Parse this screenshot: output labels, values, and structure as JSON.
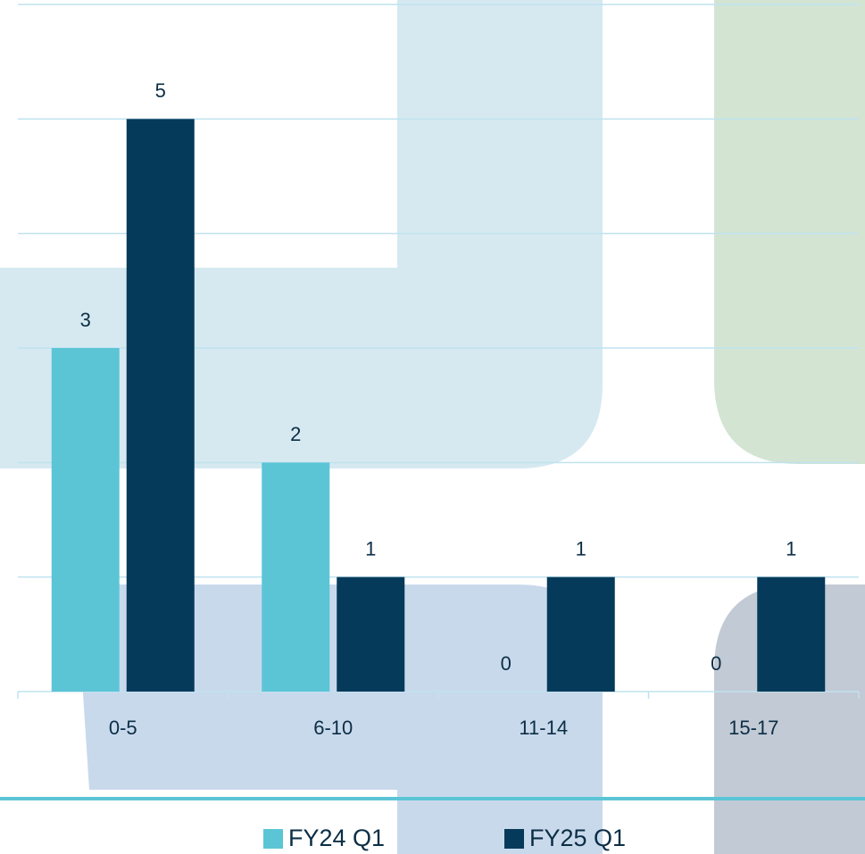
{
  "chart_data": {
    "type": "bar",
    "categories": [
      "0-5",
      "6-10",
      "11-14",
      "15-17"
    ],
    "series": [
      {
        "name": "FY24 Q1",
        "color": "#5bc5d6",
        "values": [
          3,
          2,
          0,
          0
        ]
      },
      {
        "name": "FY25 Q1",
        "color": "#063a5a",
        "values": [
          5,
          1,
          1,
          1
        ]
      }
    ],
    "ylim": [
      0,
      6
    ],
    "yticks": [
      0,
      1,
      2,
      3,
      4,
      5,
      6
    ],
    "grid": true,
    "legend": "bottom"
  }
}
